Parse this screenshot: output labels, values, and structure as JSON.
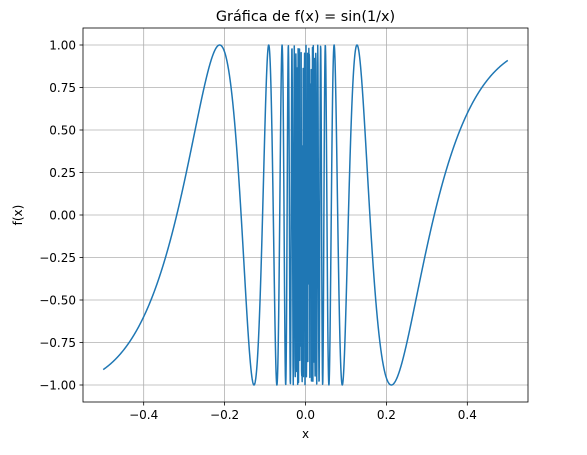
{
  "chart_data": {
    "type": "line",
    "title": "Gráfica de f(x) = sin(1/x)",
    "xlabel": "x",
    "ylabel": "f(x)",
    "xlim": [
      -0.55,
      0.55
    ],
    "ylim": [
      -1.1,
      1.1
    ],
    "grid": true,
    "x_ticks": [
      -0.4,
      -0.2,
      0.0,
      0.2,
      0.4
    ],
    "x_tick_labels": [
      "−0.4",
      "−0.2",
      "0.0",
      "0.2",
      "0.4"
    ],
    "y_ticks": [
      -1.0,
      -0.75,
      -0.5,
      -0.25,
      0.0,
      0.25,
      0.5,
      0.75,
      1.0
    ],
    "y_tick_labels": [
      "−1.00",
      "−0.75",
      "−0.50",
      "−0.25",
      "0.00",
      "0.25",
      "0.50",
      "0.75",
      "1.00"
    ],
    "series": [
      {
        "function": "sin(1/x)",
        "x_range": [
          -0.5,
          0.5
        ],
        "color": "#1f77b4"
      }
    ]
  }
}
